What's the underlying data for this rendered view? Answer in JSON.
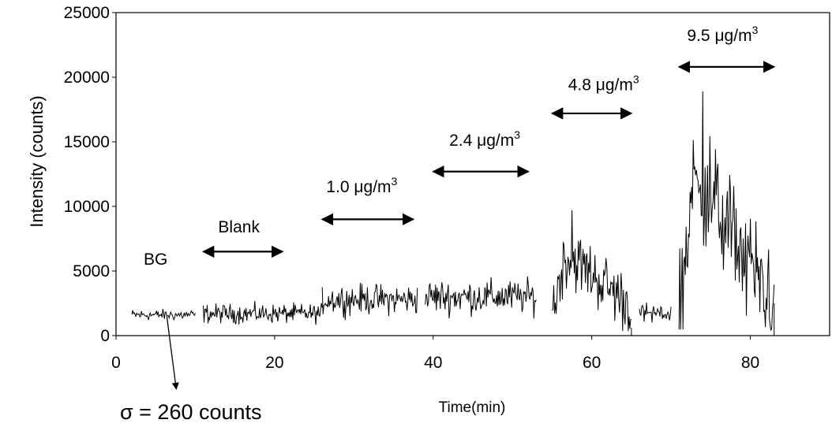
{
  "chart_data": {
    "type": "line",
    "xlabel": "Time(min)",
    "ylabel": "Intensity (counts)",
    "xlim": [
      0,
      90
    ],
    "ylim": [
      0,
      25000
    ],
    "x_ticks": [
      "0",
      "20",
      "40",
      "60",
      "80"
    ],
    "y_ticks": [
      "0",
      "5000",
      "10000",
      "15000",
      "20000",
      "25000"
    ],
    "grid": false,
    "legend": "none",
    "line_color": "#000000",
    "series": [
      {
        "segments": [
          {
            "x_start": 2,
            "x_end": 10,
            "mean": 1600,
            "noise": 260
          },
          {
            "x_start": 11,
            "x_end": 26,
            "mean": 1700,
            "noise": 450
          },
          {
            "x_start": 26,
            "x_end": 38,
            "mean": 2800,
            "noise": 700
          },
          {
            "x_start": 39,
            "x_end": 53,
            "mean": 3000,
            "noise": 800
          },
          {
            "x_start": 55,
            "x_end": 65,
            "peak": 9700,
            "peak_x": 57.5,
            "noise": 1200
          },
          {
            "x_start": 66,
            "x_end": 70,
            "mean": 1700,
            "noise": 450
          },
          {
            "x_start": 71,
            "x_end": 83,
            "peak": 18900,
            "peak_x": 74,
            "noise": 2200
          }
        ]
      }
    ],
    "annotations": [
      {
        "id": "bg",
        "text": "BG",
        "x": 5,
        "y": 5500
      },
      {
        "id": "blank",
        "text": "Blank",
        "x": 15.5,
        "y": 8000,
        "arrow_from": 11,
        "arrow_to": 21,
        "arrow_y": 6500
      },
      {
        "id": "c1",
        "text": "1.0 μg/m",
        "sup": "3",
        "x": 31,
        "y": 11100,
        "arrow_from": 26,
        "arrow_to": 37.5,
        "arrow_y": 9000
      },
      {
        "id": "c2",
        "text": "2.4 μg/m",
        "sup": "3",
        "x": 46.5,
        "y": 14700,
        "arrow_from": 40,
        "arrow_to": 52,
        "arrow_y": 12700
      },
      {
        "id": "c3",
        "text": "4.8 μg/m",
        "sup": "3",
        "x": 61.5,
        "y": 19000,
        "arrow_from": 55,
        "arrow_to": 65,
        "arrow_y": 17200
      },
      {
        "id": "c4",
        "text": "9.5 μg/m",
        "sup": "3",
        "x": 76.5,
        "y": 22800,
        "arrow_from": 71,
        "arrow_to": 83,
        "arrow_y": 20800
      }
    ],
    "sigma_note": {
      "text": "σ = 260 counts",
      "pointer_x": 7
    }
  }
}
